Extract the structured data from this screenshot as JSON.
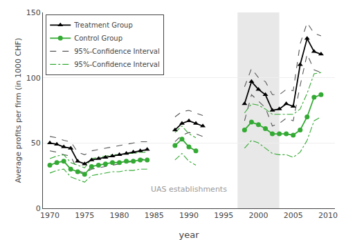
{
  "chart_data": {
    "type": "line",
    "xlabel": "year",
    "ylabel": "Average profits per firm (in 1000 CHF)",
    "xlim": [
      1969,
      2011
    ],
    "ylim": [
      0,
      150
    ],
    "xticks": [
      1970,
      1975,
      1980,
      1985,
      1990,
      1995,
      2000,
      2005,
      2010
    ],
    "yticks": [
      0,
      50,
      100,
      150
    ],
    "grid": true,
    "legend": "upper left",
    "shaded_region": {
      "range": [
        1997,
        2003
      ],
      "color": "#e8e8e8"
    },
    "annotations": [
      {
        "text": "UAS establishments",
        "x": 1990,
        "y": 10
      }
    ],
    "x": [
      1970,
      1971,
      1972,
      1973,
      1974,
      1975,
      1976,
      1977,
      1978,
      1979,
      1980,
      1981,
      1982,
      1983,
      1984,
      1985,
      1986,
      1987,
      1988,
      1989,
      1990,
      1991,
      1992,
      1993,
      1994,
      1995,
      1996,
      1997,
      1998,
      1999,
      2000,
      2001,
      2002,
      2003,
      2004,
      2005,
      2006,
      2007,
      2008,
      2009
    ],
    "series": [
      {
        "name": "Treatment Group",
        "color": "#000000",
        "marker": "triangle-up",
        "line_style": "solid",
        "values": [
          50,
          49,
          47,
          46,
          36,
          34,
          37,
          38,
          39,
          40,
          41,
          42,
          43,
          44,
          45,
          null,
          null,
          null,
          60,
          65,
          67,
          65,
          63,
          null,
          null,
          null,
          null,
          null,
          80,
          97,
          91,
          87,
          75,
          76,
          80,
          78,
          110,
          130,
          120,
          118
        ]
      },
      {
        "name": "Control Group",
        "color": "#33aa33",
        "marker": "circle",
        "line_style": "solid",
        "values": [
          33,
          35,
          36,
          30,
          28,
          26,
          32,
          33,
          34,
          35,
          35,
          36,
          36,
          37,
          37,
          null,
          null,
          null,
          48,
          53,
          47,
          44,
          null,
          null,
          null,
          null,
          null,
          null,
          60,
          66,
          64,
          61,
          57,
          57,
          57,
          56,
          60,
          70,
          85,
          87
        ]
      },
      {
        "name": "95%-Confidence Interval",
        "color": "#555555",
        "line_style": "dashed",
        "upper": [
          55,
          54,
          52,
          51,
          43,
          41,
          44,
          45,
          46,
          47,
          48,
          49,
          50,
          51,
          51,
          null,
          null,
          null,
          70,
          74,
          75,
          73,
          71,
          null,
          null,
          null,
          null,
          null,
          93,
          107,
          100,
          97,
          87,
          87,
          91,
          90,
          126,
          142,
          134,
          132
        ],
        "lower": [
          44,
          43,
          41,
          40,
          29,
          27,
          30,
          31,
          32,
          33,
          34,
          35,
          36,
          37,
          39,
          null,
          null,
          null,
          51,
          56,
          58,
          57,
          55,
          null,
          null,
          null,
          null,
          null,
          67,
          87,
          82,
          77,
          63,
          65,
          69,
          67,
          94,
          118,
          106,
          104
        ]
      },
      {
        "name": "95%-Confidence Interval",
        "color": "#33aa33",
        "line_style": "dashdot",
        "upper": [
          38,
          40,
          41,
          35,
          33,
          31,
          38,
          39,
          40,
          41,
          41,
          42,
          42,
          43,
          43,
          null,
          null,
          null,
          58,
          63,
          57,
          54,
          null,
          null,
          null,
          null,
          null,
          null,
          73,
          80,
          79,
          76,
          72,
          72,
          72,
          72,
          76,
          88,
          103,
          104
        ],
        "lower": [
          27,
          29,
          30,
          24,
          22,
          20,
          25,
          26,
          27,
          28,
          28,
          29,
          29,
          30,
          30,
          null,
          null,
          null,
          37,
          42,
          36,
          33,
          null,
          null,
          null,
          null,
          null,
          null,
          46,
          52,
          50,
          46,
          42,
          41,
          41,
          39,
          43,
          52,
          67,
          70
        ]
      }
    ]
  }
}
